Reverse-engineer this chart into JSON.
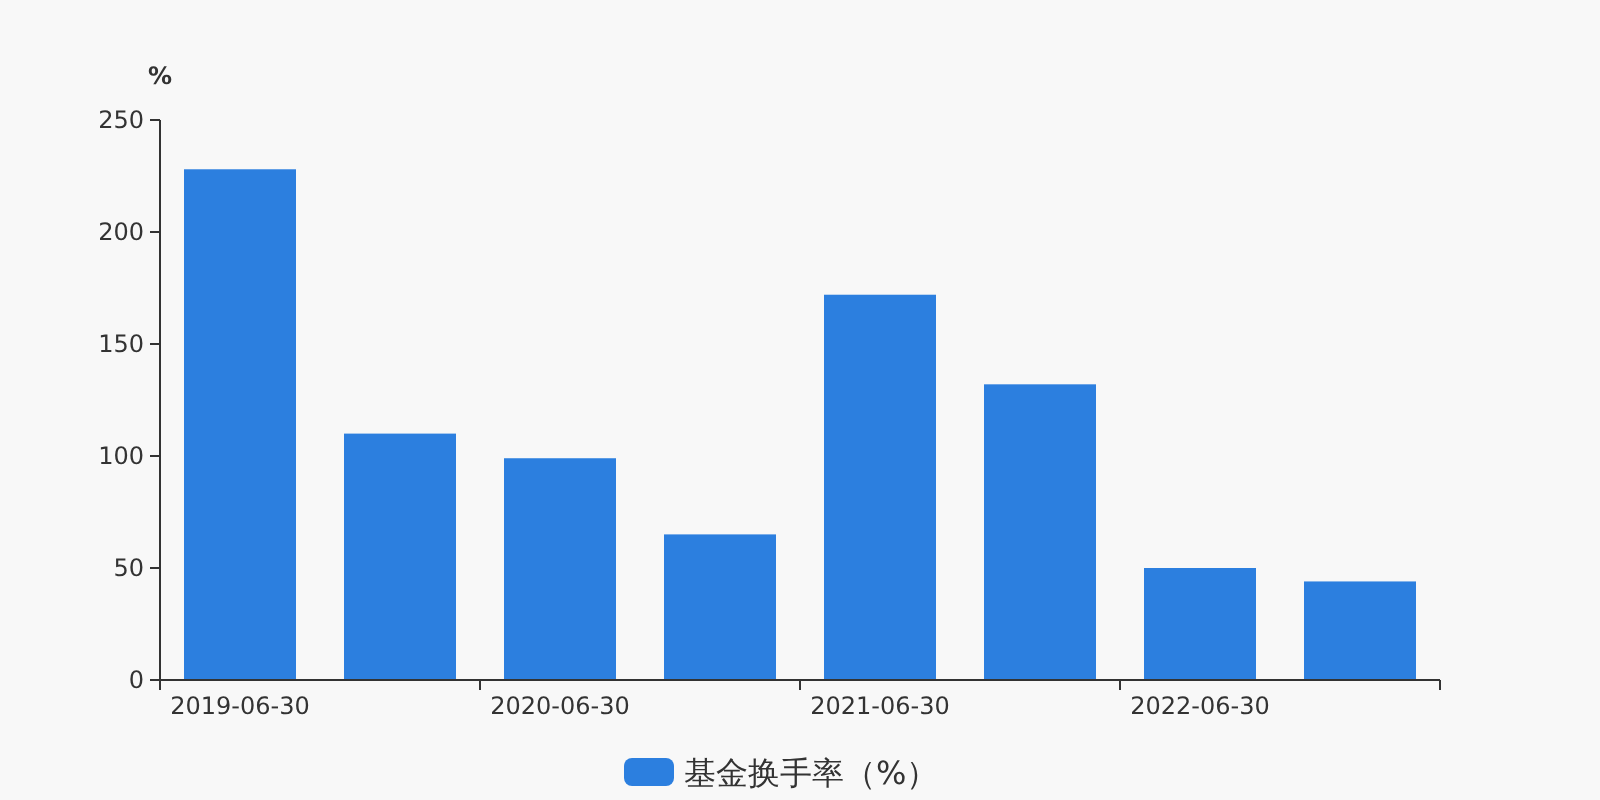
{
  "chart_data": {
    "type": "bar",
    "ylabel": "%",
    "categories": [
      "2019-06-30",
      null,
      "2020-06-30",
      null,
      "2021-06-30",
      null,
      "2022-06-30",
      null
    ],
    "series": [
      {
        "name": "基金换手率（%）",
        "color": "#2c7fdf",
        "values": [
          228,
          110,
          99,
          65,
          172,
          132,
          50,
          44
        ]
      }
    ],
    "ylim": [
      0,
      250
    ],
    "yticks": [
      0,
      50,
      100,
      150,
      200,
      250
    ],
    "grid": false,
    "legend": "bottom"
  }
}
